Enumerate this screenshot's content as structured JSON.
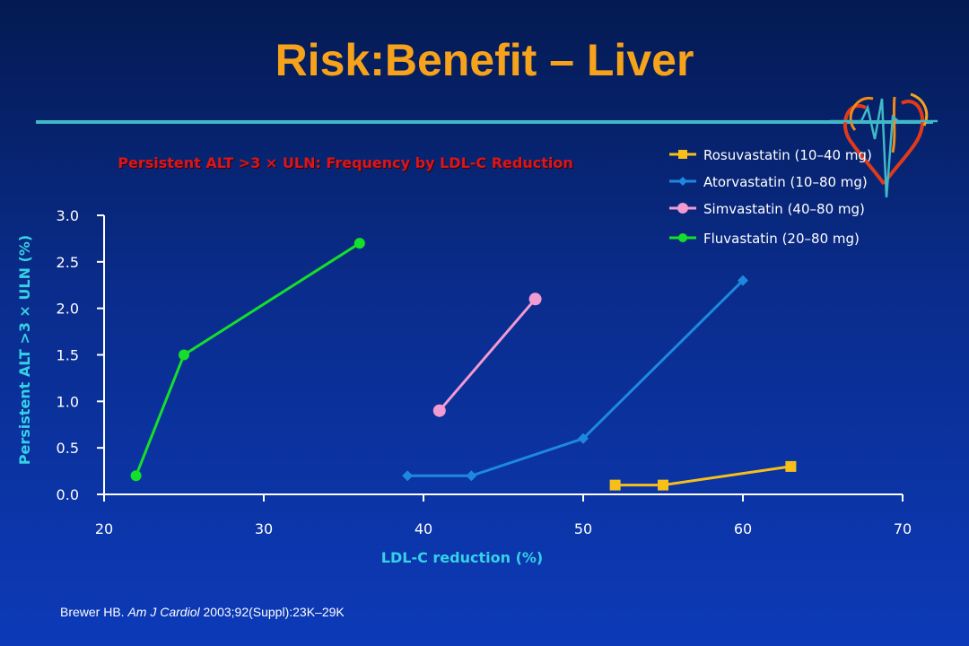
{
  "slide": {
    "title": "Risk:Benefit – Liver",
    "citation_author": "Brewer HB.",
    "citation_journal": "Am J Cardiol",
    "citation_rest": "2003;92(Suppl):23K–29K"
  },
  "colors": {
    "title": "#f7a21b",
    "rule": "#3fb8c8",
    "subtitle": "#d9161c",
    "axis_label": "#35d2e6"
  },
  "chart_data": {
    "type": "line",
    "title": "Persistent ALT >3 × ULN: Frequency by LDL-C Reduction",
    "xlabel": "LDL-C reduction (%)",
    "ylabel": "Persistent ALT >3 × ULN (%)",
    "xlim": [
      20,
      70
    ],
    "ylim": [
      0,
      3
    ],
    "xticks": [
      "20",
      "30",
      "40",
      "50",
      "60",
      "70"
    ],
    "yticks": [
      "0.0",
      "0.5",
      "1.0",
      "1.5",
      "2.0",
      "2.5",
      "3.0"
    ],
    "grid": false,
    "legend_position": "top-right",
    "series": [
      {
        "name": "Rosuvastatin (10–40 mg)",
        "color": "#f6c019",
        "marker": "square",
        "points": [
          [
            52,
            0.1
          ],
          [
            55,
            0.1
          ],
          [
            63,
            0.3
          ]
        ]
      },
      {
        "name": "Atorvastatin (10–80 mg)",
        "color": "#1e88e0",
        "marker": "diamond",
        "points": [
          [
            39,
            0.2
          ],
          [
            43,
            0.2
          ],
          [
            50,
            0.6
          ],
          [
            60,
            2.3
          ]
        ]
      },
      {
        "name": "Simvastatin (40–80 mg)",
        "color": "#f29ad2",
        "marker": "circle-large",
        "points": [
          [
            41,
            0.9
          ],
          [
            47,
            2.1
          ]
        ]
      },
      {
        "name": "Fluvastatin (20–80 mg)",
        "color": "#14e02a",
        "marker": "circle",
        "points": [
          [
            22,
            0.2
          ],
          [
            25,
            1.5
          ],
          [
            36,
            2.7
          ]
        ]
      }
    ]
  }
}
